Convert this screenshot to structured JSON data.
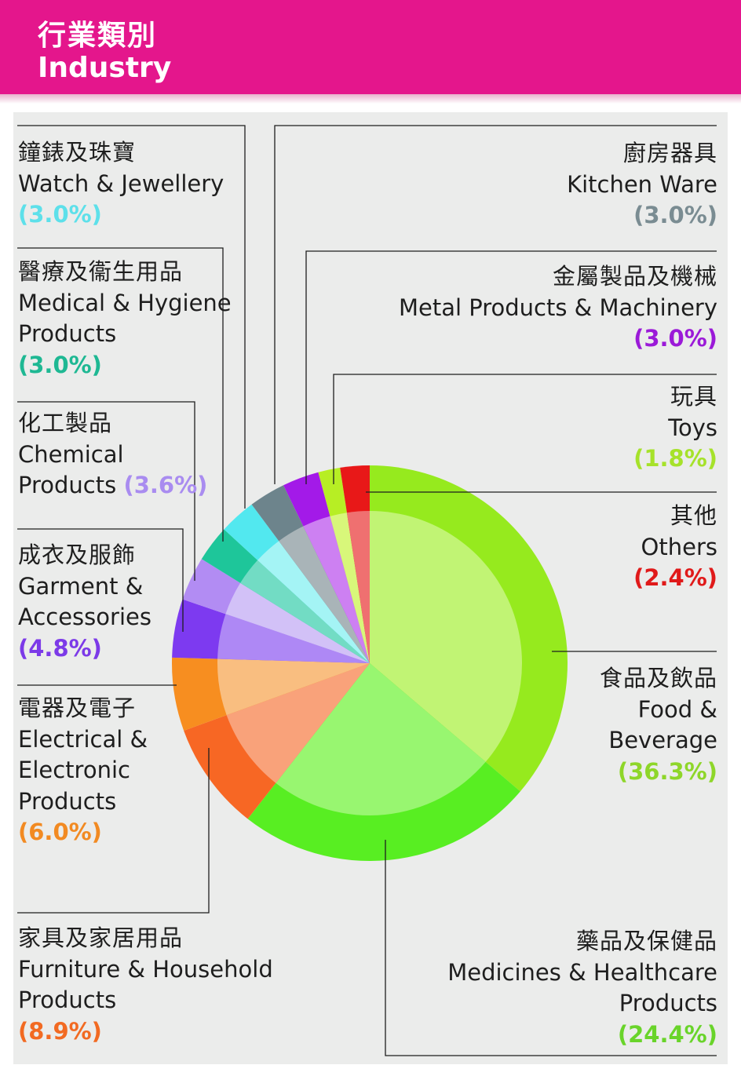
{
  "header": {
    "title_zh": "行業類別",
    "title_en": "Industry"
  },
  "chart_data": {
    "type": "pie",
    "title": "行業類別 Industry",
    "unit": "%",
    "start": "12 o'clock",
    "direction": "clockwise",
    "slices": [
      {
        "id": "food",
        "zh": "食品及飲品",
        "en": "Food & Beverage",
        "en_lines": [
          "Food &",
          "Beverage"
        ],
        "value": 36.3,
        "pct": "(36.3%)",
        "color": "#96ea1e",
        "inner": "#c1f474",
        "pct_color": "#8ed629"
      },
      {
        "id": "medicines",
        "zh": "藥品及保健品",
        "en": "Medicines & Healthcare Products",
        "en_lines": [
          "Medicines & Healthcare",
          "Products"
        ],
        "value": 24.4,
        "pct": "(24.4%)",
        "color": "#58ee22",
        "inner": "#98f670",
        "pct_color": "#69d42a"
      },
      {
        "id": "furniture",
        "zh": "家具及家居用品",
        "en": "Furniture & Household Products",
        "en_lines": [
          "Furniture & Household",
          "Products"
        ],
        "value": 8.9,
        "pct": "(8.9%)",
        "color": "#f76724",
        "inner": "#f9a27a",
        "pct_color": "#f26a22"
      },
      {
        "id": "electrical",
        "zh": "電器及電子",
        "en": "Electrical & Electronic Products",
        "en_lines": [
          "Electrical &",
          "Electronic",
          "Products"
        ],
        "value": 6.0,
        "pct": "(6.0%)",
        "color": "#f78e20",
        "inner": "#f9be80",
        "pct_color": "#f28a22"
      },
      {
        "id": "garment",
        "zh": "成衣及服飾",
        "en": "Garment & Accessories",
        "en_lines": [
          "Garment &",
          "Accessories"
        ],
        "value": 4.8,
        "pct": "(4.8%)",
        "color": "#7d3af0",
        "inner": "#ae88f5",
        "pct_color": "#7c3ae8"
      },
      {
        "id": "chemical",
        "zh": "化工製品",
        "en": "Chemical Products",
        "en_lines": [
          "Chemical",
          "Products"
        ],
        "value": 3.6,
        "pct": "(3.6%)",
        "color": "#b28cf3",
        "inner": "#d2c1f7",
        "pct_color": "#a98cf0"
      },
      {
        "id": "medical",
        "zh": "醫療及衞生用品",
        "en": "Medical & Hygiene Products",
        "en_lines": [
          "Medical & Hygiene",
          "Products"
        ],
        "value": 3.0,
        "pct": "(3.0%)",
        "color": "#1ec69a",
        "inner": "#72dcc4",
        "pct_color": "#1eb893"
      },
      {
        "id": "watch",
        "zh": "鐘錶及珠寶",
        "en": "Watch & Jewellery",
        "en_lines": [
          "Watch & Jewellery"
        ],
        "value": 3.0,
        "pct": "(3.0%)",
        "color": "#52e8ef",
        "inner": "#a4f4f5",
        "pct_color": "#5de0ea"
      },
      {
        "id": "kitchen",
        "zh": "廚房器具",
        "en": "Kitchen Ware",
        "en_lines": [
          "Kitchen Ware"
        ],
        "value": 3.0,
        "pct": "(3.0%)",
        "color": "#6d848c",
        "inner": "#a9b4b8",
        "pct_color": "#7a8c92"
      },
      {
        "id": "metal",
        "zh": "金屬製品及機械",
        "en": "Metal Products & Machinery",
        "en_lines": [
          "Metal Products & Machinery"
        ],
        "value": 3.0,
        "pct": "(3.0%)",
        "color": "#a31ae8",
        "inner": "#cd80f2",
        "pct_color": "#9b1ad8"
      },
      {
        "id": "toys",
        "zh": "玩具",
        "en": "Toys",
        "en_lines": [
          "Toys"
        ],
        "value": 1.8,
        "pct": "(1.8%)",
        "color": "#b7ee24",
        "inner": "#d8f77a",
        "pct_color": "#a6e22a"
      },
      {
        "id": "others",
        "zh": "其他",
        "en": "Others",
        "en_lines": [
          "Others"
        ],
        "value": 2.4,
        "pct": "(2.4%)",
        "color": "#e81818",
        "inner": "#ef7070",
        "pct_color": "#e01a1a"
      }
    ]
  }
}
